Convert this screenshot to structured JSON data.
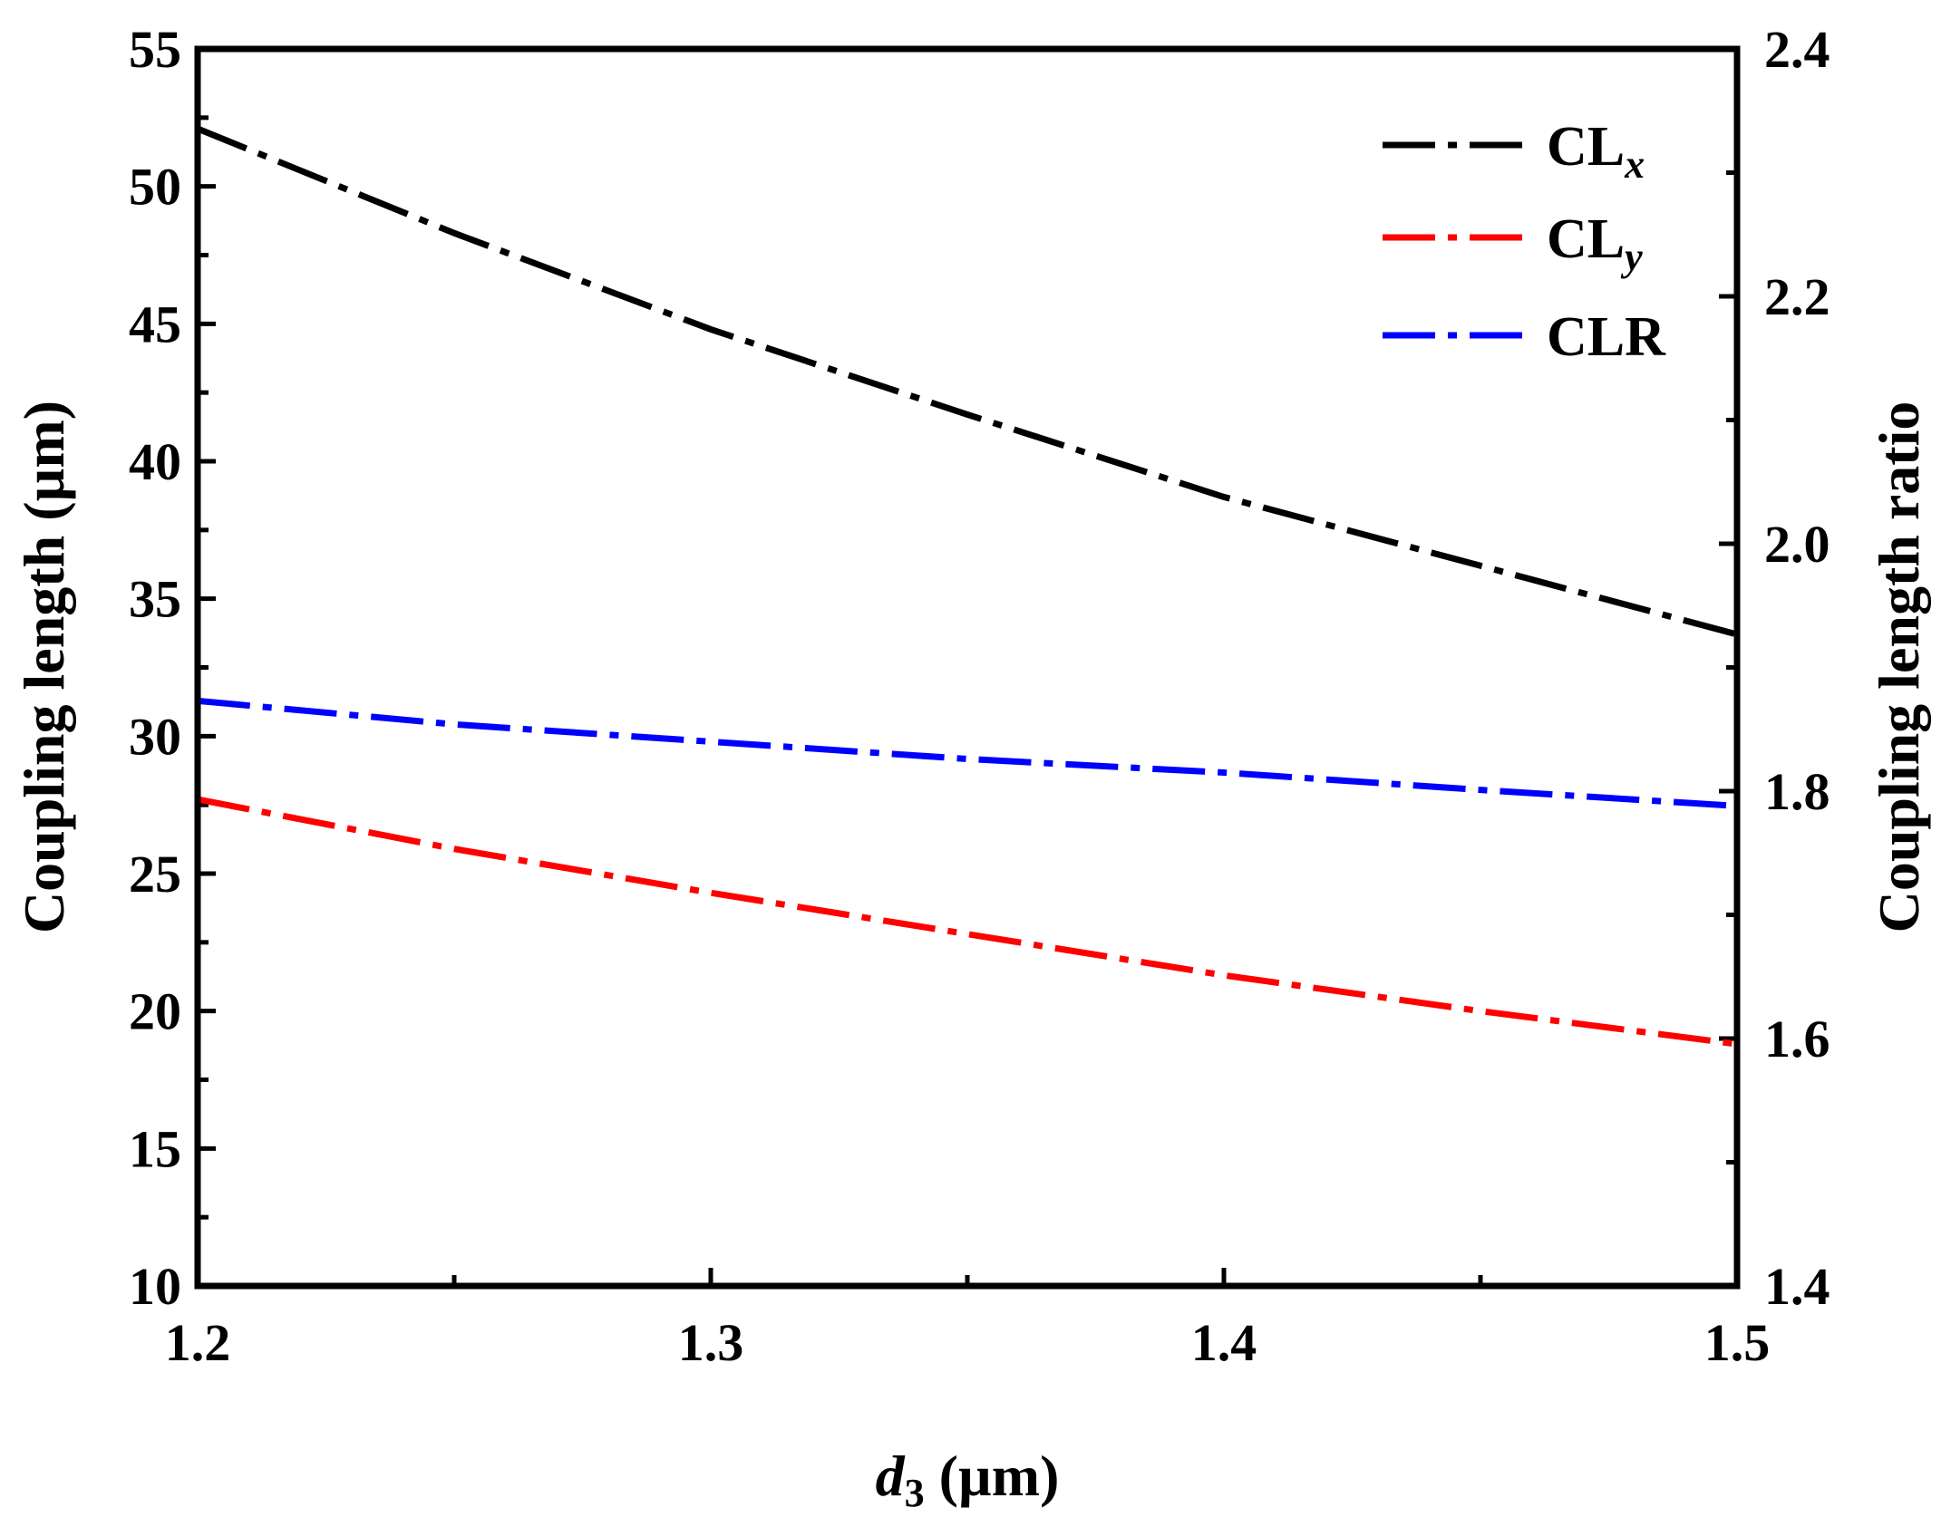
{
  "chart_data": {
    "type": "line",
    "x_axis": {
      "label_var": "d",
      "label_sub": "3",
      "label_unit": " (µm)",
      "range": [
        1.2,
        1.5
      ],
      "major_ticks": [
        1.2,
        1.3,
        1.4,
        1.5
      ],
      "tick_labels": [
        "1.2",
        "1.3",
        "1.4",
        "1.5"
      ],
      "minor_ticks": [
        1.25,
        1.35,
        1.45
      ]
    },
    "y_axis_left": {
      "label": "Coupling length (µm)",
      "range": [
        10,
        55
      ],
      "major_ticks": [
        10,
        15,
        20,
        25,
        30,
        35,
        40,
        45,
        50,
        55
      ],
      "tick_labels": [
        "10",
        "15",
        "20",
        "25",
        "30",
        "35",
        "40",
        "45",
        "50",
        "55"
      ],
      "minor_ticks": [
        12.5,
        17.5,
        22.5,
        27.5,
        32.5,
        37.5,
        42.5,
        47.5,
        52.5
      ]
    },
    "y_axis_right": {
      "label": "Coupling length ratio",
      "range": [
        1.4,
        2.4
      ],
      "major_ticks": [
        1.4,
        1.6,
        1.8,
        2.0,
        2.2,
        2.4
      ],
      "tick_labels": [
        "1.4",
        "1.6",
        "1.8",
        "2.0",
        "2.2",
        "2.4"
      ],
      "minor_ticks": [
        1.5,
        1.7,
        1.9,
        2.1,
        2.3
      ]
    },
    "series": [
      {
        "name": "CLx",
        "legend_main": "CL",
        "legend_sub": "x",
        "color": "#000000",
        "axis": "left",
        "x": [
          1.2,
          1.25,
          1.3,
          1.35,
          1.4,
          1.45,
          1.5
        ],
        "y": [
          52.1,
          48.3,
          44.8,
          41.7,
          38.7,
          36.2,
          33.7
        ]
      },
      {
        "name": "CLy",
        "legend_main": "CL",
        "legend_sub": "y",
        "color": "#ff0000",
        "axis": "left",
        "x": [
          1.2,
          1.25,
          1.3,
          1.35,
          1.4,
          1.45,
          1.5
        ],
        "y": [
          27.7,
          25.9,
          24.3,
          22.8,
          21.3,
          20.0,
          18.8
        ]
      },
      {
        "name": "CLR",
        "legend_main": "CLR",
        "legend_sub": "",
        "color": "#0000ff",
        "axis": "right",
        "x": [
          1.2,
          1.25,
          1.3,
          1.35,
          1.4,
          1.45,
          1.5
        ],
        "y": [
          1.873,
          1.854,
          1.84,
          1.826,
          1.815,
          1.801,
          1.788
        ]
      }
    ],
    "legend_position": "top-right"
  }
}
